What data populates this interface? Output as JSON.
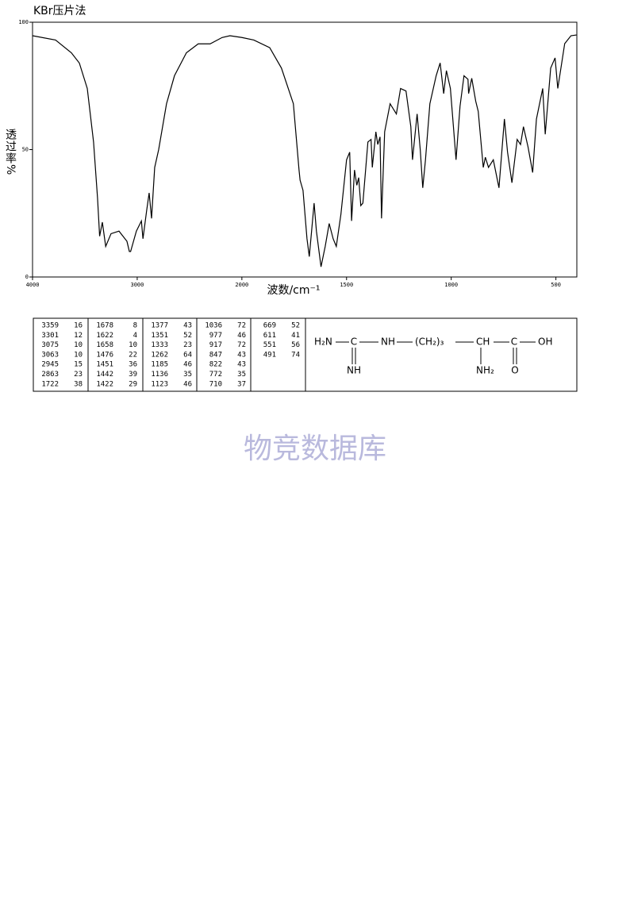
{
  "chart_data": {
    "type": "line",
    "title": "KBr压片法",
    "y_label": "透过率%",
    "x_label": "波数/cm⁻¹",
    "xlim": [
      4000,
      400
    ],
    "xticks": [
      4000,
      3000,
      2000,
      1500,
      1000,
      500
    ],
    "ylim": [
      0,
      100
    ],
    "yticks": [
      0,
      50,
      100
    ],
    "color": "#000000",
    "x": [
      4000,
      3780,
      3629,
      3553,
      3477,
      3417,
      3379,
      3359,
      3333,
      3301,
      3250,
      3174,
      3098,
      3075,
      3063,
      3008,
      2960,
      2945,
      2910,
      2886,
      2863,
      2833,
      2795,
      2720,
      2644,
      2530,
      2417,
      2303,
      2189,
      2114,
      2000,
      1943,
      1867,
      1811,
      1754,
      1727,
      1722,
      1708,
      1689,
      1678,
      1667,
      1655,
      1644,
      1622,
      1602,
      1583,
      1564,
      1549,
      1527,
      1500,
      1485,
      1476,
      1462,
      1451,
      1442,
      1432,
      1422,
      1398,
      1383,
      1377,
      1360,
      1351,
      1340,
      1333,
      1318,
      1292,
      1262,
      1242,
      1216,
      1193,
      1185,
      1163,
      1148,
      1136,
      1123,
      1102,
      1072,
      1053,
      1036,
      1023,
      1004,
      977,
      958,
      939,
      920,
      917,
      902,
      883,
      871,
      847,
      837,
      822,
      799,
      772,
      746,
      731,
      710,
      685,
      669,
      655,
      633,
      611,
      593,
      563,
      551,
      525,
      504,
      491,
      458,
      428,
      402
    ],
    "values": [
      94.7,
      93,
      88,
      84,
      74,
      53,
      31,
      16,
      21.5,
      12,
      17,
      18,
      14,
      10,
      10,
      18,
      22,
      15,
      26,
      33,
      23,
      43,
      50,
      68,
      79,
      88,
      91.5,
      91.5,
      94,
      94.7,
      94,
      93,
      90,
      82,
      68,
      42,
      38,
      34,
      15,
      8,
      18,
      29,
      18,
      4,
      12,
      21,
      15,
      12,
      24.6,
      46,
      49,
      22,
      42,
      36,
      39,
      28,
      29,
      53,
      54,
      43,
      57,
      52,
      55,
      23,
      57,
      68,
      64,
      74,
      73,
      59,
      46,
      64,
      50,
      35,
      46,
      68,
      79,
      84,
      72,
      81,
      74,
      46,
      67,
      79,
      77.6,
      72,
      78,
      69,
      65,
      43,
      47,
      43,
      46,
      35,
      62,
      49,
      37,
      54,
      52,
      59,
      51,
      41,
      62,
      74,
      56,
      82,
      86,
      74,
      91.6,
      94.7,
      95
    ]
  },
  "peaks": [
    [
      [
        "3359",
        "16"
      ],
      [
        "3301",
        "12"
      ],
      [
        "3075",
        "10"
      ],
      [
        "3063",
        "10"
      ],
      [
        "2945",
        "15"
      ],
      [
        "2863",
        "23"
      ],
      [
        "1722",
        "38"
      ]
    ],
    [
      [
        "1678",
        "8"
      ],
      [
        "1622",
        "4"
      ],
      [
        "1658",
        "10"
      ],
      [
        "1476",
        "22"
      ],
      [
        "1451",
        "36"
      ],
      [
        "1442",
        "39"
      ],
      [
        "1422",
        "29"
      ]
    ],
    [
      [
        "1377",
        "43"
      ],
      [
        "1351",
        "52"
      ],
      [
        "1333",
        "23"
      ],
      [
        "1262",
        "64"
      ],
      [
        "1185",
        "46"
      ],
      [
        "1136",
        "35"
      ],
      [
        "1123",
        "46"
      ]
    ],
    [
      [
        "1036",
        "72"
      ],
      [
        "977",
        "46"
      ],
      [
        "917",
        "72"
      ],
      [
        "847",
        "43"
      ],
      [
        "822",
        "43"
      ],
      [
        "772",
        "35"
      ],
      [
        "710",
        "37"
      ]
    ],
    [
      [
        "669",
        "52"
      ],
      [
        "611",
        "41"
      ],
      [
        "551",
        "56"
      ],
      [
        "491",
        "74"
      ]
    ]
  ],
  "structure": {
    "main": [
      "H₂N",
      "C",
      "NH",
      "(CH₂)₃",
      "CH",
      "C",
      "OH"
    ],
    "below": [
      "NH",
      "NH₂",
      "O"
    ]
  },
  "watermark": "物竞数据库"
}
